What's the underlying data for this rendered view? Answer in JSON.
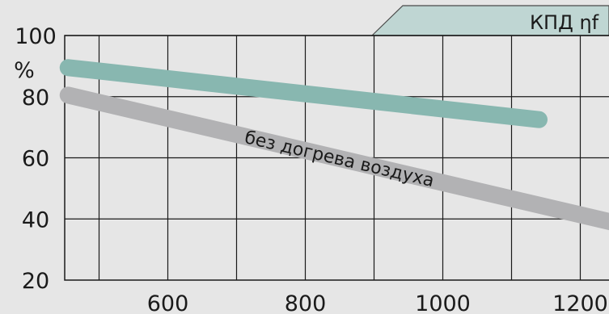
{
  "chart_data": {
    "type": "line",
    "title": "КПД ηf",
    "ylabel": "%",
    "xlim": [
      450,
      1250
    ],
    "ylim": [
      20,
      100
    ],
    "x_ticks": [
      600,
      800,
      1000,
      1200
    ],
    "y_ticks": [
      20,
      40,
      60,
      80,
      100
    ],
    "x_grid": [
      500,
      600,
      700,
      800,
      900,
      1000,
      1100,
      1200
    ],
    "y_grid": [
      40,
      60,
      80,
      100
    ],
    "grid": true,
    "legend": "none",
    "series": [
      {
        "color": "#88b7b0",
        "x": [
          455,
          1140
        ],
        "y": [
          89.5,
          72.5
        ]
      },
      {
        "name": "без догрева воздуха",
        "color": "#b2b2b4",
        "x": [
          455,
          1245
        ],
        "y": [
          80.5,
          39
        ]
      }
    ]
  }
}
